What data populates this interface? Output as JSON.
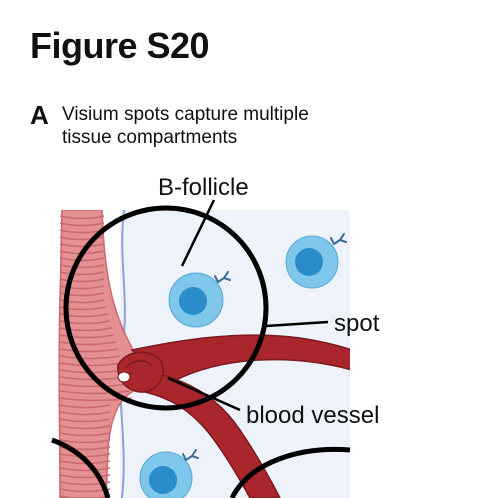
{
  "figure": {
    "title": "Figure S20"
  },
  "panel": {
    "letter": "A",
    "caption_line1": "Visium spots capture multiple",
    "caption_line2": "tissue compartments"
  },
  "labels": {
    "b_follicle": "B-follicle",
    "spot": "spot",
    "blood_vessel": "blood vessel"
  },
  "colors": {
    "tissue_background": "#eef3fb",
    "tissue_border": "#8ca3cf",
    "lymph_vessel_fill": "#e48f92",
    "lymph_vessel_rings": "#c86a6f",
    "blood_vessel_fill": "#a8262c",
    "blood_vessel_dark": "#7b1a1f",
    "cell_outer": "#7ec6ea",
    "cell_nucleus": "#2a8cc8",
    "antibody": "#3d6a9a",
    "spot_outline": "#000000"
  }
}
